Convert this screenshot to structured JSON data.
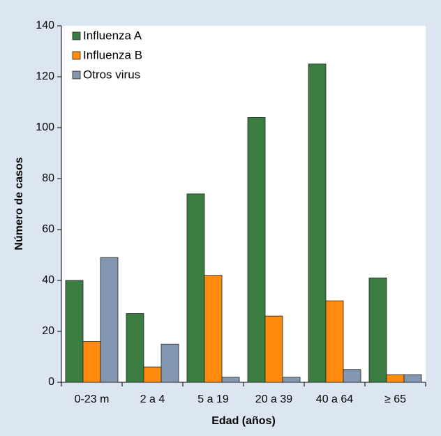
{
  "chart_data": {
    "type": "bar",
    "x_label": "Edad (años)",
    "y_label": "Número de casos",
    "categories": [
      "0-23 m",
      "2 a 4",
      "5 a 19",
      "20 a 39",
      "40 a 64",
      "≥ 65"
    ],
    "series": [
      {
        "name": "Influenza A",
        "color": "#3b7d41",
        "values": [
          40,
          27,
          74,
          104,
          125,
          41
        ]
      },
      {
        "name": "Influenza B",
        "color": "#ff8c0f",
        "values": [
          16,
          6,
          42,
          26,
          32,
          3
        ]
      },
      {
        "name": "Otros virus",
        "color": "#8497b0",
        "values": [
          49,
          15,
          2,
          2,
          5,
          3
        ]
      }
    ],
    "ylim": [
      0,
      140
    ],
    "yticks": [
      0,
      20,
      40,
      60,
      80,
      100,
      120,
      140
    ],
    "legend": "upper left"
  }
}
